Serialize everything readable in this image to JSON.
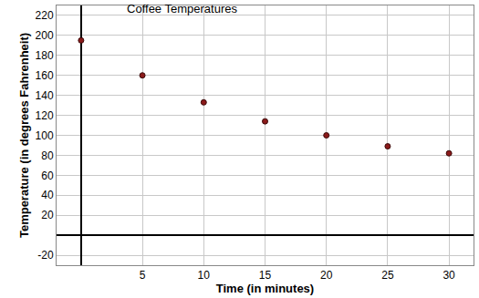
{
  "chart_data": {
    "type": "scatter",
    "title": "Coffee Temperatures",
    "x_label": "Time (in minutes)",
    "y_label": "Temperature (in degrees Fahrenheit)",
    "x": [
      0,
      5,
      10,
      15,
      20,
      25,
      30
    ],
    "values": [
      195,
      160,
      133,
      114,
      100,
      89,
      82
    ],
    "color": "#8b1a1a",
    "marker": "circle",
    "xlim": [
      -2,
      32
    ],
    "xticks": [
      5,
      10,
      15,
      20,
      25,
      30
    ],
    "ylim": [
      -30,
      230
    ],
    "yticks": [
      -20,
      20,
      40,
      60,
      80,
      100,
      120,
      140,
      160,
      180,
      200,
      220
    ],
    "grid": true
  }
}
